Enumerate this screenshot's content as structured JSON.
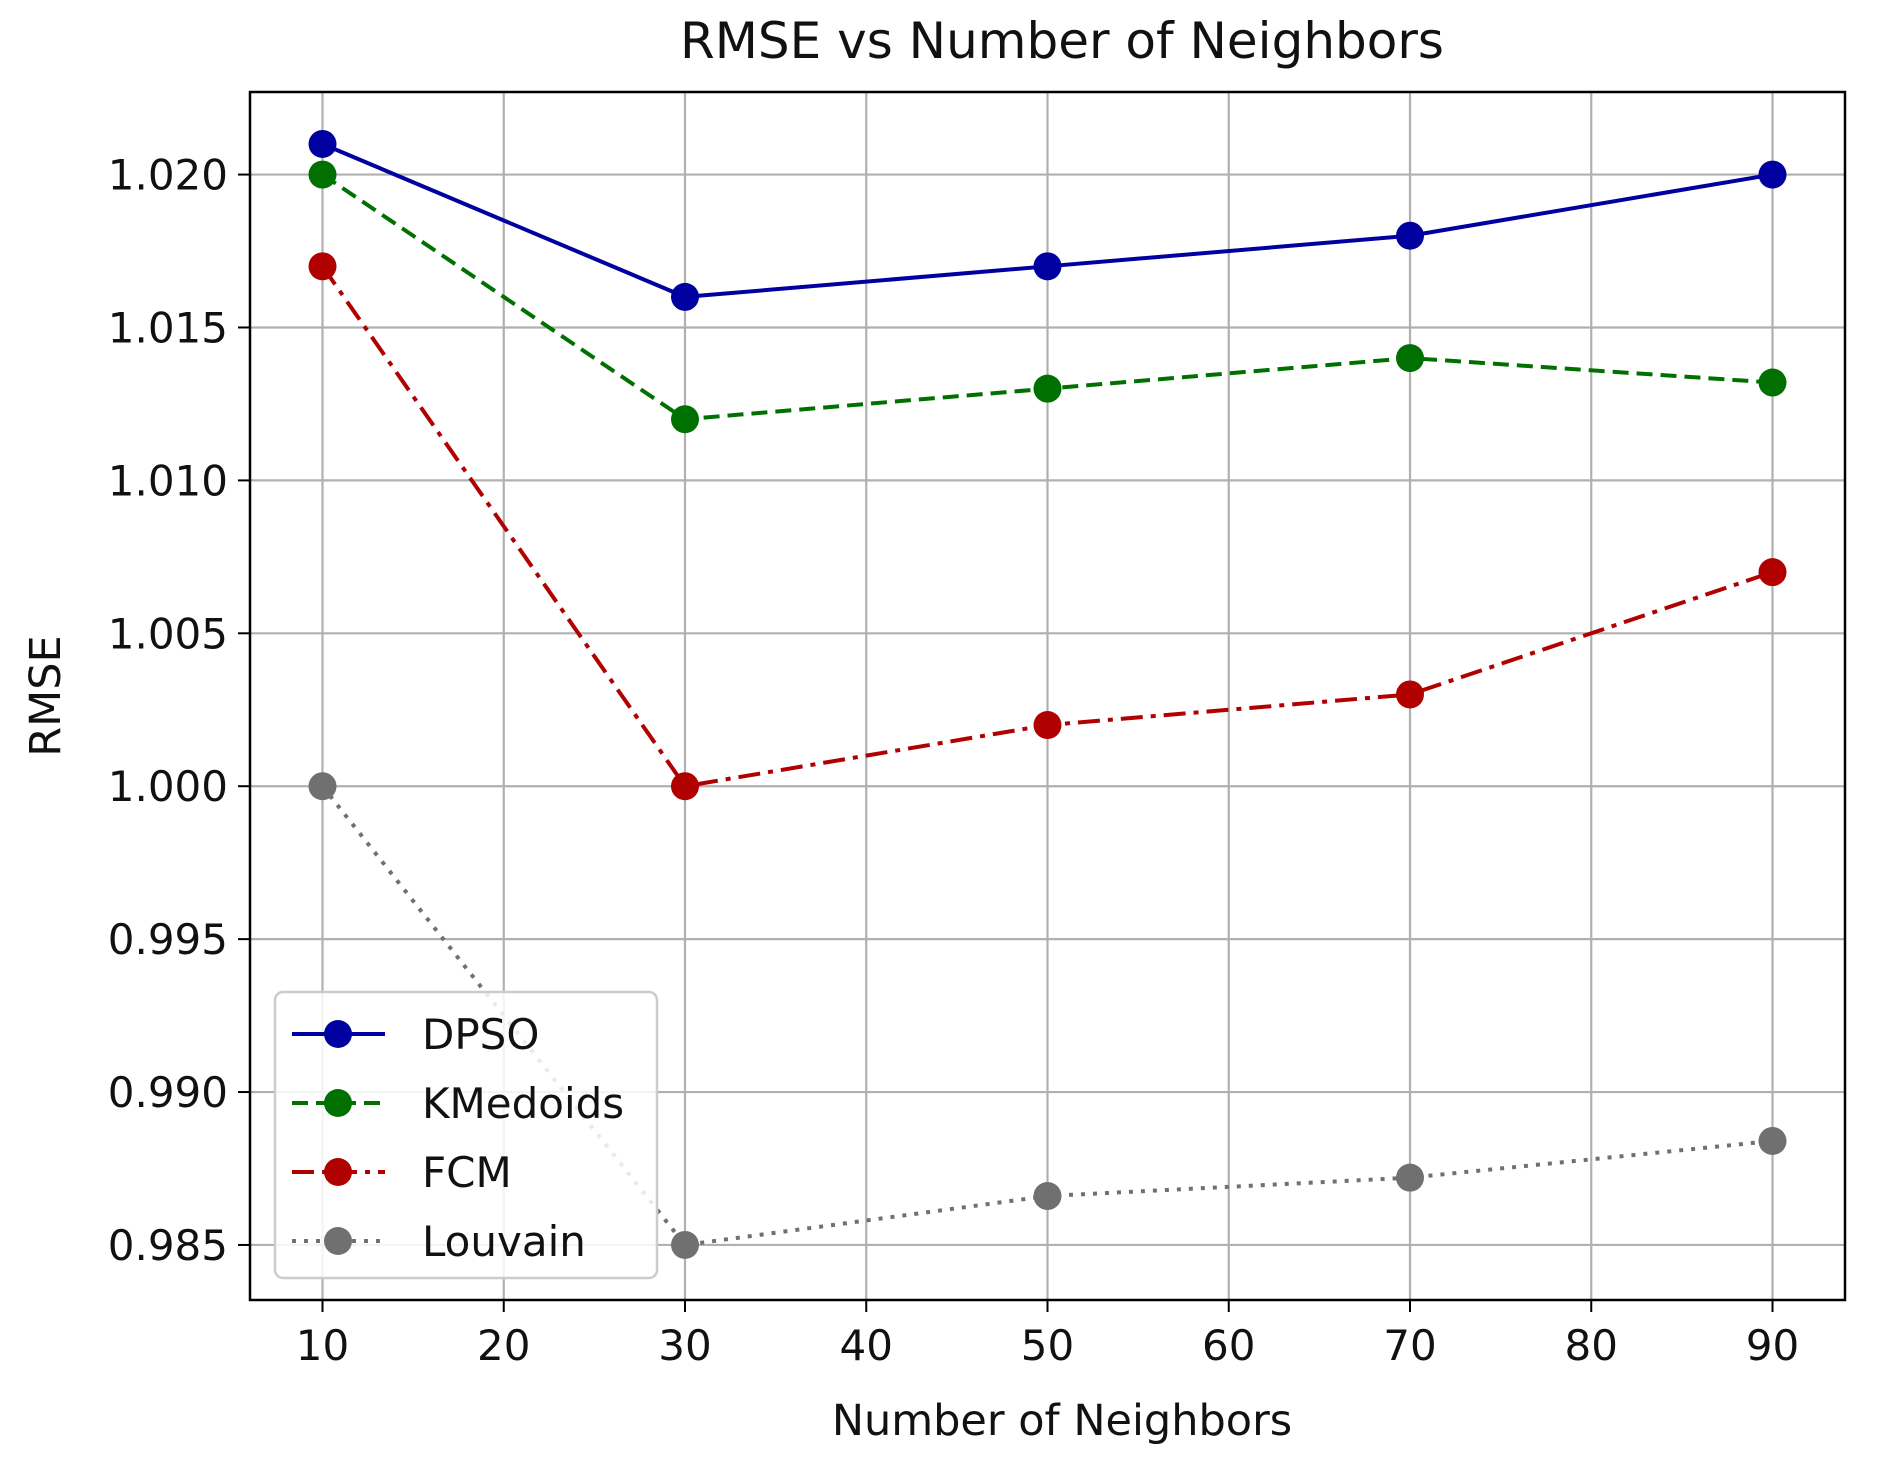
{
  "chart_data": {
    "type": "line",
    "title": "RMSE vs Number of Neighbors",
    "xlabel": "Number of Neighbors",
    "ylabel": "RMSE",
    "x": [
      10,
      30,
      50,
      70,
      90
    ],
    "xlim": [
      6,
      94
    ],
    "ylim": [
      0.9832,
      1.0227
    ],
    "xticks": [
      10,
      20,
      30,
      40,
      50,
      60,
      70,
      80,
      90
    ],
    "yticks": [
      0.985,
      0.99,
      0.995,
      1.0,
      1.005,
      1.01,
      1.015,
      1.02
    ],
    "ytick_labels": [
      "0.985",
      "0.990",
      "0.995",
      "1.000",
      "1.005",
      "1.010",
      "1.015",
      "1.020"
    ],
    "grid": true,
    "legend_position": "lower-left",
    "series": [
      {
        "name": "DPSO",
        "values": [
          1.021,
          1.016,
          1.017,
          1.018,
          1.02
        ],
        "color": "#0000a0",
        "style": "solid"
      },
      {
        "name": "KMedoids",
        "values": [
          1.02,
          1.012,
          1.013,
          1.014,
          1.0132
        ],
        "color": "#007000",
        "style": "dashed"
      },
      {
        "name": "FCM",
        "values": [
          1.017,
          1.0,
          1.002,
          1.003,
          1.007
        ],
        "color": "#b00000",
        "style": "dashdot"
      },
      {
        "name": "Louvain",
        "values": [
          1.0,
          0.985,
          0.9866,
          0.9872,
          0.9884
        ],
        "color": "#707070",
        "style": "dotted"
      }
    ]
  }
}
